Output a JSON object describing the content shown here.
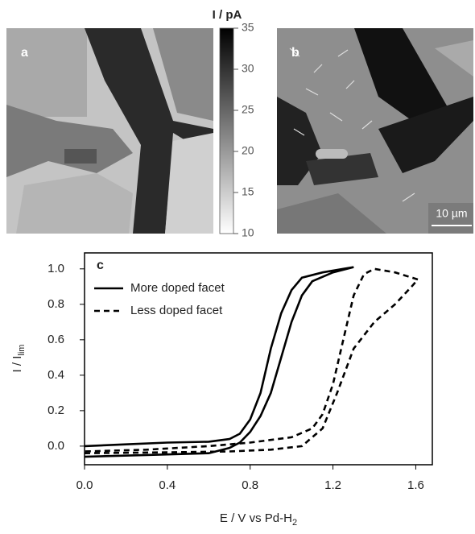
{
  "chart_data": [
    {
      "type": "colorbar",
      "panel_label": "a",
      "title": "I / pA",
      "ylim": [
        10,
        35
      ],
      "yticks": [
        10,
        15,
        20,
        25,
        30,
        35
      ],
      "colors": [
        "#ffffff",
        "#000000"
      ]
    },
    {
      "type": "image",
      "panel_label": "b",
      "scale_bar": "10 µm"
    },
    {
      "type": "line",
      "panel_label": "c",
      "xlim": [
        0,
        1.68
      ],
      "ylim": [
        -0.105,
        1.09
      ],
      "xticks": [
        {
          "value": 0,
          "label": "0.0"
        },
        {
          "value": 0.4,
          "label": "0.4"
        },
        {
          "value": 0.8,
          "label": "0.8"
        },
        {
          "value": 1.2,
          "label": "1.2"
        },
        {
          "value": 1.6,
          "label": "1.6"
        }
      ],
      "yticks": [
        {
          "value": 0,
          "label": "0.0"
        },
        {
          "value": 0.2,
          "label": "0.2"
        },
        {
          "value": 0.4,
          "label": "0.4"
        },
        {
          "value": 0.6,
          "label": "0.6"
        },
        {
          "value": 0.8,
          "label": "0.8"
        },
        {
          "value": 1,
          "label": "1.0"
        }
      ],
      "xlabel": {
        "text": "E / V vs Pd-H",
        "sub": "2"
      },
      "ylabel": {
        "text": "I / I",
        "sub": "lim"
      },
      "legend": "upper left",
      "series": [
        {
          "name": "More doped facet",
          "color": "#000000",
          "dash": false,
          "x": [
            0,
            0.3,
            0.6,
            0.7,
            0.75,
            0.8,
            0.85,
            0.9,
            0.95,
            1.0,
            1.05,
            1.1,
            1.2,
            1.3,
            1.25,
            1.15,
            1.05,
            1.0,
            0.95,
            0.9,
            0.85,
            0.8,
            0.75,
            0.7,
            0.6,
            0.4,
            0.2,
            0
          ],
          "values": [
            -0.06,
            -0.05,
            -0.04,
            -0.01,
            0.02,
            0.08,
            0.17,
            0.3,
            0.5,
            0.7,
            0.85,
            0.93,
            0.98,
            1.01,
            1.0,
            0.98,
            0.95,
            0.88,
            0.75,
            0.55,
            0.3,
            0.15,
            0.07,
            0.04,
            0.025,
            0.02,
            0.01,
            0
          ]
        },
        {
          "name": "Less doped facet",
          "color": "#000000",
          "dash": true,
          "x": [
            0,
            0.4,
            0.7,
            0.9,
            1.05,
            1.15,
            1.22,
            1.3,
            1.4,
            1.5,
            1.58,
            1.61,
            1.5,
            1.4,
            1.35,
            1.3,
            1.25,
            1.2,
            1.15,
            1.1,
            1.0,
            0.8,
            0.6,
            0.3,
            0
          ],
          "values": [
            -0.04,
            -0.035,
            -0.03,
            -0.02,
            0,
            0.1,
            0.3,
            0.55,
            0.7,
            0.8,
            0.9,
            0.94,
            0.98,
            1.0,
            0.97,
            0.85,
            0.6,
            0.35,
            0.18,
            0.1,
            0.05,
            0.02,
            0,
            -0.02,
            -0.03
          ]
        }
      ]
    }
  ]
}
